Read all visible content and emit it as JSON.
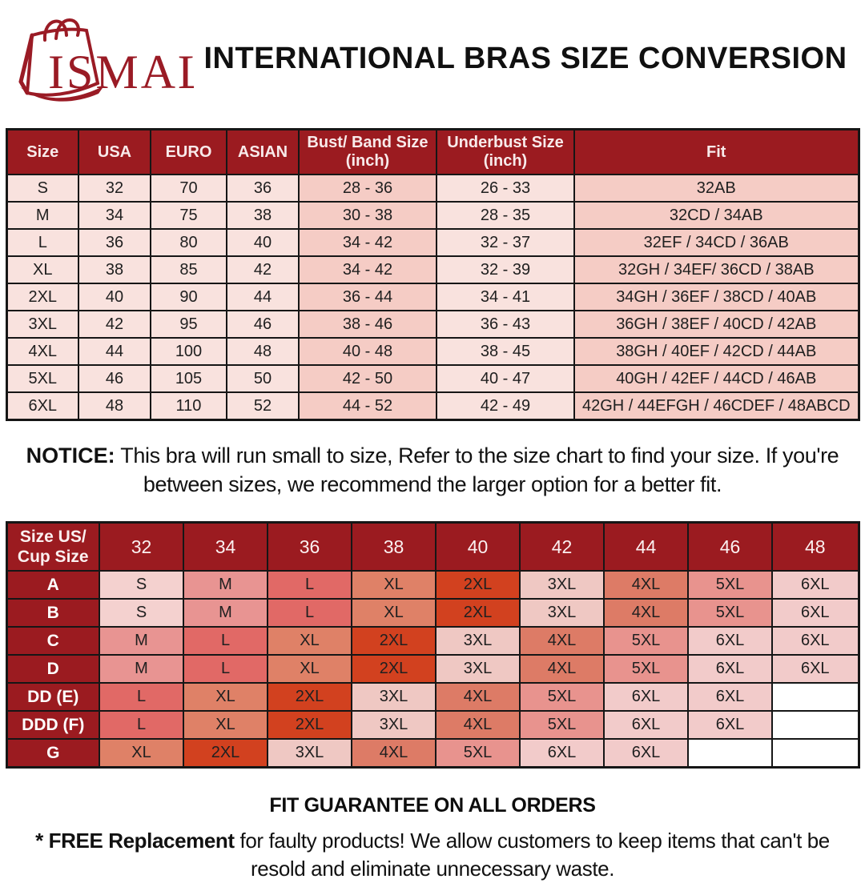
{
  "brand": {
    "name": "ISMALI"
  },
  "title": "INTERNATIONAL BRAS SIZE CONVERSION",
  "colors": {
    "header_red": "#9B1B20",
    "logo_red": "#9A1B25",
    "border": "#161616",
    "row_light_pink": "#F9E2DE",
    "row_mid_pink": "#F5CCC5",
    "value_colors": {
      "S": "#F4D1CF",
      "M": "#E89492",
      "L": "#E16966",
      "XL": "#DF8167",
      "2XL": "#D2411F",
      "3XL": "#EFC8C3",
      "4XL": "#DD7B66",
      "5XL": "#E8938E",
      "6XL": "#F2CBCA"
    }
  },
  "size_table": {
    "columns": [
      {
        "label": "Size",
        "tint": false
      },
      {
        "label": "USA",
        "tint": false
      },
      {
        "label": "EURO",
        "tint": false
      },
      {
        "label": "ASIAN",
        "tint": false
      },
      {
        "label": "Bust/ Band Size\n(inch)",
        "tint": true
      },
      {
        "label": "Underbust Size\n(inch)",
        "tint": false
      },
      {
        "label": "Fit",
        "tint": true
      }
    ],
    "rows": [
      [
        "S",
        "32",
        "70",
        "36",
        "28 - 36",
        "26 - 33",
        "32AB"
      ],
      [
        "M",
        "34",
        "75",
        "38",
        "30 - 38",
        "28 - 35",
        "32CD / 34AB"
      ],
      [
        "L",
        "36",
        "80",
        "40",
        "34 - 42",
        "32 - 37",
        "32EF / 34CD / 36AB"
      ],
      [
        "XL",
        "38",
        "85",
        "42",
        "34 - 42",
        "32 - 39",
        "32GH / 34EF/ 36CD / 38AB"
      ],
      [
        "2XL",
        "40",
        "90",
        "44",
        "36 - 44",
        "34 - 41",
        "34GH / 36EF / 38CD / 40AB"
      ],
      [
        "3XL",
        "42",
        "95",
        "46",
        "38 - 46",
        "36 - 43",
        "36GH / 38EF / 40CD / 42AB"
      ],
      [
        "4XL",
        "44",
        "100",
        "48",
        "40 - 48",
        "38 - 45",
        "38GH / 40EF / 42CD / 44AB"
      ],
      [
        "5XL",
        "46",
        "105",
        "50",
        "42 - 50",
        "40 - 47",
        "40GH / 42EF / 44CD / 46AB"
      ],
      [
        "6XL",
        "48",
        "110",
        "52",
        "44 - 52",
        "42 - 49",
        "42GH / 44EFGH / 46CDEF / 48ABCD"
      ]
    ]
  },
  "notice": {
    "label": "NOTICE:",
    "text": " This bra will run small to size, Refer to the size chart to find your size. If you're between sizes, we recommend the larger option for a better fit."
  },
  "cup_table": {
    "corner": "Size US/\nCup Size",
    "band_sizes": [
      "32",
      "34",
      "36",
      "38",
      "40",
      "42",
      "44",
      "46",
      "48"
    ],
    "cup_rows": [
      {
        "cup": "A",
        "cells": [
          "S",
          "M",
          "L",
          "XL",
          "2XL",
          "3XL",
          "4XL",
          "5XL",
          "6XL"
        ]
      },
      {
        "cup": "B",
        "cells": [
          "S",
          "M",
          "L",
          "XL",
          "2XL",
          "3XL",
          "4XL",
          "5XL",
          "6XL"
        ]
      },
      {
        "cup": "C",
        "cells": [
          "M",
          "L",
          "XL",
          "2XL",
          "3XL",
          "4XL",
          "5XL",
          "6XL",
          "6XL"
        ]
      },
      {
        "cup": "D",
        "cells": [
          "M",
          "L",
          "XL",
          "2XL",
          "3XL",
          "4XL",
          "5XL",
          "6XL",
          "6XL"
        ]
      },
      {
        "cup": "DD (E)",
        "cells": [
          "L",
          "XL",
          "2XL",
          "3XL",
          "4XL",
          "5XL",
          "6XL",
          "6XL",
          ""
        ]
      },
      {
        "cup": "DDD (F)",
        "cells": [
          "L",
          "XL",
          "2XL",
          "3XL",
          "4XL",
          "5XL",
          "6XL",
          "6XL",
          ""
        ]
      },
      {
        "cup": "G",
        "cells": [
          "XL",
          "2XL",
          "3XL",
          "4XL",
          "5XL",
          "6XL",
          "6XL",
          "",
          ""
        ]
      }
    ]
  },
  "fit_guarantee": "FIT GUARANTEE ON ALL ORDERS",
  "footnote": {
    "bold": "* FREE Replacement",
    "text": " for faulty products! We allow customers to keep items that can't be resold and eliminate unnecessary waste."
  }
}
